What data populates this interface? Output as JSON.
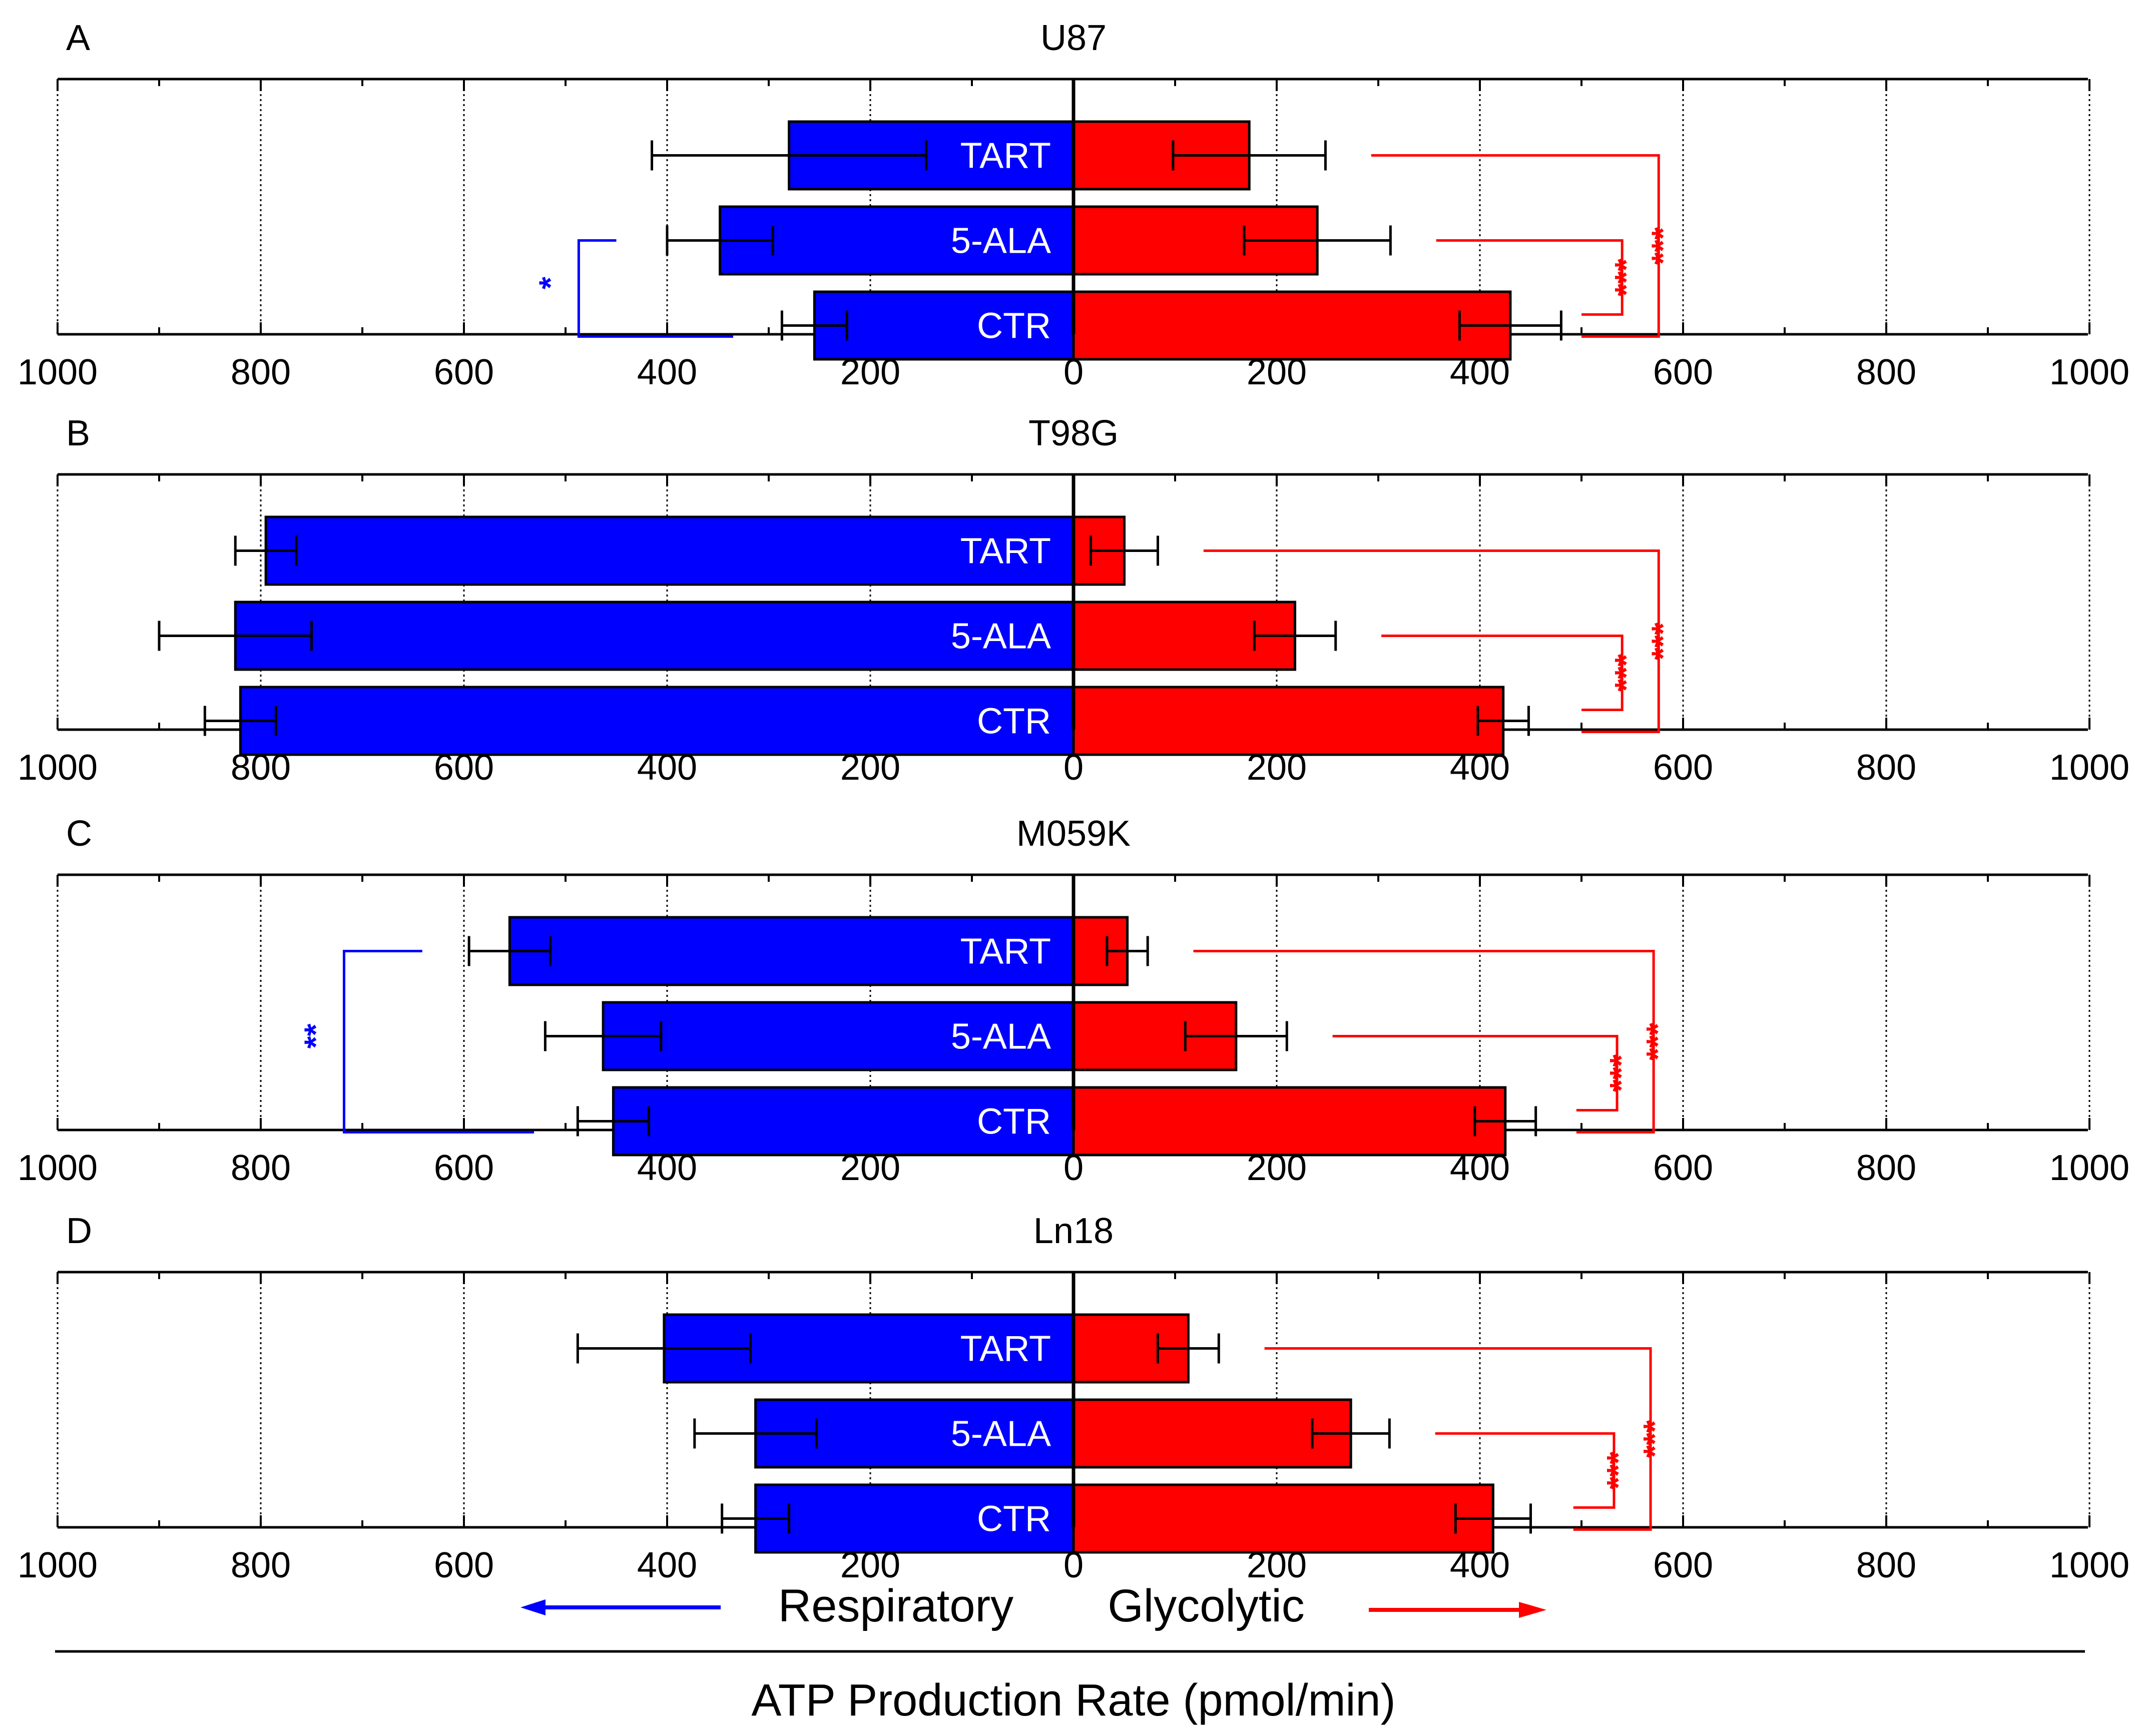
{
  "chart_data": {
    "type": "bar",
    "orientation": "horizontal-butterfly",
    "x_axis_label": "ATP Production Rate (pmol/min)",
    "left_direction_label": "Respiratory",
    "right_direction_label": "Glycolytic",
    "tick_labels": [
      "1000",
      "800",
      "600",
      "400",
      "200",
      "0",
      "200",
      "400",
      "600",
      "800",
      "1000"
    ],
    "xlim_each_side": [
      0,
      1000
    ],
    "grid": "dotted-vertical",
    "colors": {
      "respiratory": "#0000ff",
      "glycolytic": "#ff0000",
      "axis": "#000000",
      "error_bar": "#000000"
    },
    "categories": [
      "TART",
      "5-ALA",
      "CTR"
    ],
    "panels": [
      {
        "letter": "A",
        "title": "U87",
        "respiratory": {
          "values": [
            280,
            348,
            255
          ],
          "errors": [
            135,
            52,
            32
          ]
        },
        "glycolytic": {
          "values": [
            173,
            240,
            430
          ],
          "errors": [
            75,
            72,
            50
          ]
        },
        "significance": [
          {
            "side": "glycolytic",
            "label": "***",
            "from": "5-ALA",
            "to": "CTR"
          },
          {
            "side": "glycolytic",
            "label": "***",
            "from": "TART",
            "to": "CTR"
          },
          {
            "side": "respiratory",
            "label": "*",
            "from": "5-ALA",
            "to": "CTR"
          }
        ]
      },
      {
        "letter": "B",
        "title": "T98G",
        "respiratory": {
          "values": [
            795,
            825,
            820
          ],
          "errors": [
            30,
            75,
            35
          ]
        },
        "glycolytic": {
          "values": [
            50,
            218,
            423
          ],
          "errors": [
            33,
            40,
            25
          ]
        },
        "significance": [
          {
            "side": "glycolytic",
            "label": "***",
            "from": "5-ALA",
            "to": "CTR"
          },
          {
            "side": "glycolytic",
            "label": "***",
            "from": "TART",
            "to": "CTR"
          }
        ]
      },
      {
        "letter": "C",
        "title": "M059K",
        "respiratory": {
          "values": [
            555,
            463,
            453
          ],
          "errors": [
            40,
            57,
            35
          ]
        },
        "glycolytic": {
          "values": [
            53,
            160,
            425
          ],
          "errors": [
            20,
            50,
            30
          ]
        },
        "significance": [
          {
            "side": "glycolytic",
            "label": "***",
            "from": "5-ALA",
            "to": "CTR"
          },
          {
            "side": "glycolytic",
            "label": "***",
            "from": "TART",
            "to": "CTR"
          },
          {
            "side": "respiratory",
            "label": "**",
            "from": "TART",
            "to": "CTR"
          }
        ]
      },
      {
        "letter": "D",
        "title": "Ln18",
        "respiratory": {
          "values": [
            403,
            313,
            313
          ],
          "errors": [
            85,
            60,
            33
          ]
        },
        "glycolytic": {
          "values": [
            113,
            273,
            413
          ],
          "errors": [
            30,
            38,
            37
          ]
        },
        "significance": [
          {
            "side": "glycolytic",
            "label": "***",
            "from": "5-ALA",
            "to": "CTR"
          },
          {
            "side": "glycolytic",
            "label": "***",
            "from": "TART",
            "to": "CTR"
          }
        ]
      }
    ]
  }
}
